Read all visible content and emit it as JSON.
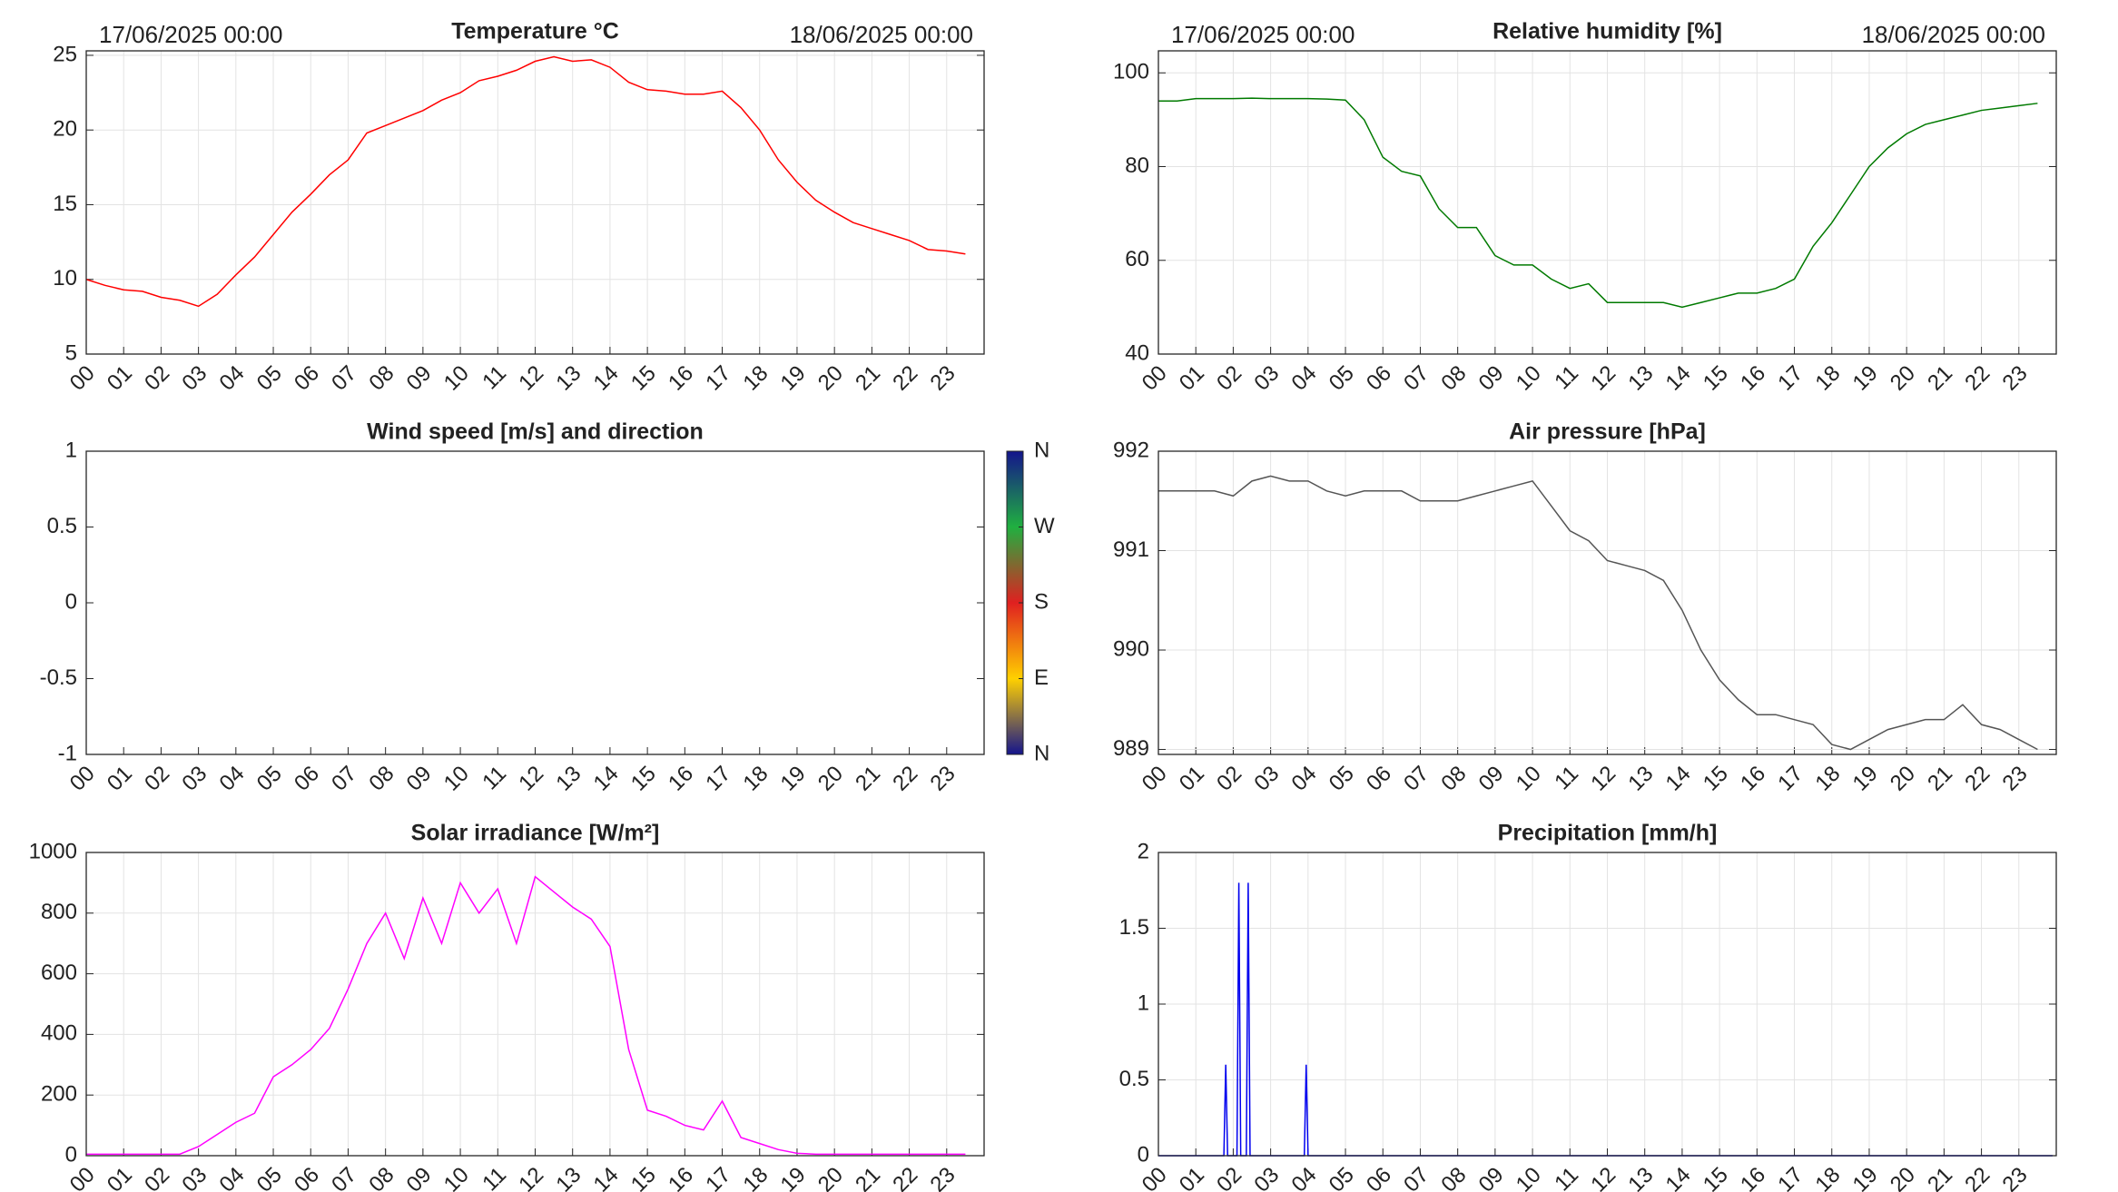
{
  "chart_data": [
    {
      "type": "line",
      "title": "Temperature °C",
      "annotations": [
        "17/06/2025 00:00",
        "18/06/2025 00:00"
      ],
      "color": "#ff0000",
      "grid": true,
      "x": [
        0,
        0.5,
        1,
        1.5,
        2,
        2.5,
        3,
        3.5,
        4,
        4.5,
        5,
        5.5,
        6,
        6.5,
        7,
        7.5,
        8,
        8.5,
        9,
        9.5,
        10,
        10.5,
        11,
        11.5,
        12,
        12.5,
        13,
        13.5,
        14,
        14.5,
        15,
        15.5,
        16,
        16.5,
        17,
        17.5,
        18,
        18.5,
        19,
        19.5,
        20,
        20.5,
        21,
        21.5,
        22,
        22.5,
        23,
        23.5
      ],
      "values": [
        10,
        9.6,
        9.3,
        9.2,
        8.8,
        8.6,
        8.2,
        9,
        10.3,
        11.5,
        13,
        14.5,
        15.7,
        17,
        18,
        19.8,
        20.3,
        20.8,
        21.3,
        22,
        22.5,
        23.3,
        23.6,
        24,
        24.6,
        24.9,
        24.6,
        24.7,
        24.2,
        23.2,
        22.7,
        22.6,
        22.4,
        22.4,
        22.6,
        21.5,
        20,
        18,
        16.5,
        15.3,
        14.5,
        13.8,
        13.4,
        13,
        12.6,
        12,
        11.9,
        11.7
      ],
      "xlim": [
        0,
        24
      ],
      "ylim": [
        5,
        25.3
      ],
      "yticks": [
        5,
        10,
        15,
        20,
        25
      ],
      "xticks": [
        {
          "value": 0,
          "label": "00"
        },
        {
          "value": 1,
          "label": "01"
        },
        {
          "value": 2,
          "label": "02"
        },
        {
          "value": 3,
          "label": "03"
        },
        {
          "value": 4,
          "label": "04"
        },
        {
          "value": 5,
          "label": "05"
        },
        {
          "value": 6,
          "label": "06"
        },
        {
          "value": 7,
          "label": "07"
        },
        {
          "value": 8,
          "label": "08"
        },
        {
          "value": 9,
          "label": "09"
        },
        {
          "value": 10,
          "label": "10"
        },
        {
          "value": 11,
          "label": "11"
        },
        {
          "value": 12,
          "label": "12"
        },
        {
          "value": 13,
          "label": "13"
        },
        {
          "value": 14,
          "label": "14"
        },
        {
          "value": 15,
          "label": "15"
        },
        {
          "value": 16,
          "label": "16"
        },
        {
          "value": 17,
          "label": "17"
        },
        {
          "value": 18,
          "label": "18"
        },
        {
          "value": 19,
          "label": "19"
        },
        {
          "value": 20,
          "label": "20"
        },
        {
          "value": 21,
          "label": "21"
        },
        {
          "value": 22,
          "label": "22"
        },
        {
          "value": 23,
          "label": "23"
        }
      ]
    },
    {
      "type": "line",
      "title": "Relative humidity [%]",
      "annotations": [
        "17/06/2025 00:00",
        "18/06/2025 00:00"
      ],
      "color": "#007a00",
      "grid": true,
      "x": [
        0,
        0.5,
        1,
        1.5,
        2,
        2.5,
        3,
        3.5,
        4,
        4.5,
        5,
        5.5,
        6,
        6.5,
        7,
        7.5,
        8,
        8.5,
        9,
        9.5,
        10,
        10.5,
        11,
        11.5,
        12,
        12.5,
        13,
        13.5,
        14,
        14.5,
        15,
        15.5,
        16,
        16.5,
        17,
        17.5,
        18,
        18.5,
        19,
        19.5,
        20,
        20.5,
        21,
        21.5,
        22,
        22.5,
        23,
        23.5
      ],
      "values": [
        94,
        94,
        94.5,
        94.5,
        94.5,
        94.6,
        94.5,
        94.5,
        94.5,
        94.4,
        94.2,
        90,
        82,
        79,
        78,
        71,
        67,
        67,
        61,
        59,
        59,
        56,
        54,
        55,
        51,
        51,
        51,
        51,
        50,
        51,
        52,
        53,
        53,
        54,
        56,
        63,
        68,
        74,
        80,
        84,
        87,
        89,
        90,
        91,
        92,
        92.5,
        93,
        93.5
      ],
      "xlim": [
        0,
        24
      ],
      "ylim": [
        40,
        104.7
      ],
      "yticks": [
        40,
        60,
        80,
        100
      ],
      "xticks": [
        {
          "value": 0,
          "label": "00"
        },
        {
          "value": 1,
          "label": "01"
        },
        {
          "value": 2,
          "label": "02"
        },
        {
          "value": 3,
          "label": "03"
        },
        {
          "value": 4,
          "label": "04"
        },
        {
          "value": 5,
          "label": "05"
        },
        {
          "value": 6,
          "label": "06"
        },
        {
          "value": 7,
          "label": "07"
        },
        {
          "value": 8,
          "label": "08"
        },
        {
          "value": 9,
          "label": "09"
        },
        {
          "value": 10,
          "label": "10"
        },
        {
          "value": 11,
          "label": "11"
        },
        {
          "value": 12,
          "label": "12"
        },
        {
          "value": 13,
          "label": "13"
        },
        {
          "value": 14,
          "label": "14"
        },
        {
          "value": 15,
          "label": "15"
        },
        {
          "value": 16,
          "label": "16"
        },
        {
          "value": 17,
          "label": "17"
        },
        {
          "value": 18,
          "label": "18"
        },
        {
          "value": 19,
          "label": "19"
        },
        {
          "value": 20,
          "label": "20"
        },
        {
          "value": 21,
          "label": "21"
        },
        {
          "value": 22,
          "label": "22"
        },
        {
          "value": 23,
          "label": "23"
        }
      ]
    },
    {
      "type": "line",
      "title": "Wind speed [m/s] and direction",
      "grid": false,
      "xlim": [
        0,
        24
      ],
      "ylim": [
        -1,
        1
      ],
      "yticks": [
        -1,
        -0.5,
        0,
        0.5,
        1
      ],
      "colorbar": {
        "range": [
          0,
          360
        ],
        "ticks": [
          {
            "value": 0,
            "label": "N"
          },
          {
            "value": 90,
            "label": "E"
          },
          {
            "value": 180,
            "label": "S"
          },
          {
            "value": 270,
            "label": "W"
          },
          {
            "value": 360,
            "label": "N"
          }
        ],
        "colors": [
          "#14148c",
          "#ffd000",
          "#e02020",
          "#20b040",
          "#14148c"
        ]
      },
      "xticks": [
        {
          "value": 0,
          "label": "00"
        },
        {
          "value": 1,
          "label": "01"
        },
        {
          "value": 2,
          "label": "02"
        },
        {
          "value": 3,
          "label": "03"
        },
        {
          "value": 4,
          "label": "04"
        },
        {
          "value": 5,
          "label": "05"
        },
        {
          "value": 6,
          "label": "06"
        },
        {
          "value": 7,
          "label": "07"
        },
        {
          "value": 8,
          "label": "08"
        },
        {
          "value": 9,
          "label": "09"
        },
        {
          "value": 10,
          "label": "10"
        },
        {
          "value": 11,
          "label": "11"
        },
        {
          "value": 12,
          "label": "12"
        },
        {
          "value": 13,
          "label": "13"
        },
        {
          "value": 14,
          "label": "14"
        },
        {
          "value": 15,
          "label": "15"
        },
        {
          "value": 16,
          "label": "16"
        },
        {
          "value": 17,
          "label": "17"
        },
        {
          "value": 18,
          "label": "18"
        },
        {
          "value": 19,
          "label": "19"
        },
        {
          "value": 20,
          "label": "20"
        },
        {
          "value": 21,
          "label": "21"
        },
        {
          "value": 22,
          "label": "22"
        },
        {
          "value": 23,
          "label": "23"
        }
      ]
    },
    {
      "type": "line",
      "title": "Air pressure [hPa]",
      "color": "#555555",
      "grid": true,
      "x": [
        0,
        0.5,
        1,
        1.5,
        2,
        2.5,
        3,
        3.5,
        4,
        4.5,
        5,
        5.5,
        6,
        6.5,
        7,
        7.5,
        8,
        8.5,
        9,
        9.5,
        10,
        10.5,
        11,
        11.5,
        12,
        12.5,
        13,
        13.5,
        14,
        14.5,
        15,
        15.5,
        16,
        16.5,
        17,
        17.5,
        18,
        18.5,
        19,
        19.5,
        20,
        20.5,
        21,
        21.5,
        22,
        22.5,
        23,
        23.5
      ],
      "values": [
        991.6,
        991.6,
        991.6,
        991.6,
        991.55,
        991.7,
        991.75,
        991.7,
        991.7,
        991.6,
        991.55,
        991.6,
        991.6,
        991.6,
        991.5,
        991.5,
        991.5,
        991.55,
        991.6,
        991.65,
        991.7,
        991.45,
        991.2,
        991.1,
        990.9,
        990.85,
        990.8,
        990.7,
        990.4,
        990.0,
        989.7,
        989.5,
        989.35,
        989.35,
        989.3,
        989.25,
        989.05,
        989.0,
        989.1,
        989.2,
        989.25,
        989.3,
        989.3,
        989.45,
        989.25,
        989.2,
        989.1,
        989.0
      ],
      "xlim": [
        0,
        24
      ],
      "ylim": [
        988.95,
        992
      ],
      "yticks": [
        989,
        990,
        991,
        992
      ],
      "xticks": [
        {
          "value": 0,
          "label": "00"
        },
        {
          "value": 1,
          "label": "01"
        },
        {
          "value": 2,
          "label": "02"
        },
        {
          "value": 3,
          "label": "03"
        },
        {
          "value": 4,
          "label": "04"
        },
        {
          "value": 5,
          "label": "05"
        },
        {
          "value": 6,
          "label": "06"
        },
        {
          "value": 7,
          "label": "07"
        },
        {
          "value": 8,
          "label": "08"
        },
        {
          "value": 9,
          "label": "09"
        },
        {
          "value": 10,
          "label": "10"
        },
        {
          "value": 11,
          "label": "11"
        },
        {
          "value": 12,
          "label": "12"
        },
        {
          "value": 13,
          "label": "13"
        },
        {
          "value": 14,
          "label": "14"
        },
        {
          "value": 15,
          "label": "15"
        },
        {
          "value": 16,
          "label": "16"
        },
        {
          "value": 17,
          "label": "17"
        },
        {
          "value": 18,
          "label": "18"
        },
        {
          "value": 19,
          "label": "19"
        },
        {
          "value": 20,
          "label": "20"
        },
        {
          "value": 21,
          "label": "21"
        },
        {
          "value": 22,
          "label": "22"
        },
        {
          "value": 23,
          "label": "23"
        }
      ]
    },
    {
      "type": "line",
      "title": "Solar irradiance [W/m²]",
      "color": "#ff00ff",
      "grid": true,
      "x": [
        0,
        0.5,
        1,
        1.5,
        2,
        2.5,
        3,
        3.5,
        4,
        4.5,
        5,
        5.5,
        6,
        6.5,
        7,
        7.5,
        8,
        8.5,
        9,
        9.5,
        10,
        10.5,
        11,
        11.5,
        12,
        12.5,
        13,
        13.5,
        14,
        14.5,
        15,
        15.5,
        16,
        16.5,
        17,
        17.5,
        18,
        18.5,
        19,
        19.5,
        20,
        20.5,
        21,
        21.5,
        22,
        22.5,
        23,
        23.5
      ],
      "values": [
        5,
        5,
        5,
        5,
        5,
        5,
        30,
        70,
        110,
        140,
        260,
        300,
        350,
        420,
        550,
        700,
        800,
        650,
        850,
        700,
        900,
        800,
        880,
        700,
        920,
        870,
        820,
        780,
        690,
        350,
        150,
        130,
        100,
        85,
        180,
        60,
        40,
        20,
        8,
        5,
        5,
        5,
        5,
        5,
        5,
        5,
        5,
        5
      ],
      "xlim": [
        0,
        24
      ],
      "ylim": [
        0,
        1000
      ],
      "yticks": [
        0,
        200,
        400,
        600,
        800,
        1000
      ],
      "xticks": [
        {
          "value": 0,
          "label": "00"
        },
        {
          "value": 1,
          "label": "01"
        },
        {
          "value": 2,
          "label": "02"
        },
        {
          "value": 3,
          "label": "03"
        },
        {
          "value": 4,
          "label": "04"
        },
        {
          "value": 5,
          "label": "05"
        },
        {
          "value": 6,
          "label": "06"
        },
        {
          "value": 7,
          "label": "07"
        },
        {
          "value": 8,
          "label": "08"
        },
        {
          "value": 9,
          "label": "09"
        },
        {
          "value": 10,
          "label": "10"
        },
        {
          "value": 11,
          "label": "11"
        },
        {
          "value": 12,
          "label": "12"
        },
        {
          "value": 13,
          "label": "13"
        },
        {
          "value": 14,
          "label": "14"
        },
        {
          "value": 15,
          "label": "15"
        },
        {
          "value": 16,
          "label": "16"
        },
        {
          "value": 17,
          "label": "17"
        },
        {
          "value": 18,
          "label": "18"
        },
        {
          "value": 19,
          "label": "19"
        },
        {
          "value": 20,
          "label": "20"
        },
        {
          "value": 21,
          "label": "21"
        },
        {
          "value": 22,
          "label": "22"
        },
        {
          "value": 23,
          "label": "23"
        }
      ]
    },
    {
      "type": "line",
      "title": "Precipitation [mm/h]",
      "color": "#0000ee",
      "grid": true,
      "x": [
        0,
        1.75,
        1.8,
        1.85,
        2.1,
        2.15,
        2.2,
        2.35,
        2.4,
        2.45,
        3.9,
        3.95,
        4.0,
        23.9
      ],
      "values": [
        0,
        0,
        0.6,
        0,
        0,
        1.8,
        0,
        0,
        1.8,
        0,
        0,
        0.6,
        0,
        0
      ],
      "xlim": [
        0,
        24
      ],
      "ylim": [
        0,
        2
      ],
      "yticks": [
        0,
        0.5,
        1,
        1.5,
        2
      ],
      "xticks": [
        {
          "value": 0,
          "label": "00"
        },
        {
          "value": 1,
          "label": "01"
        },
        {
          "value": 2,
          "label": "02"
        },
        {
          "value": 3,
          "label": "03"
        },
        {
          "value": 4,
          "label": "04"
        },
        {
          "value": 5,
          "label": "05"
        },
        {
          "value": 6,
          "label": "06"
        },
        {
          "value": 7,
          "label": "07"
        },
        {
          "value": 8,
          "label": "08"
        },
        {
          "value": 9,
          "label": "09"
        },
        {
          "value": 10,
          "label": "10"
        },
        {
          "value": 11,
          "label": "11"
        },
        {
          "value": 12,
          "label": "12"
        },
        {
          "value": 13,
          "label": "13"
        },
        {
          "value": 14,
          "label": "14"
        },
        {
          "value": 15,
          "label": "15"
        },
        {
          "value": 16,
          "label": "16"
        },
        {
          "value": 17,
          "label": "17"
        },
        {
          "value": 18,
          "label": "18"
        },
        {
          "value": 19,
          "label": "19"
        },
        {
          "value": 20,
          "label": "20"
        },
        {
          "value": 21,
          "label": "21"
        },
        {
          "value": 22,
          "label": "22"
        },
        {
          "value": 23,
          "label": "23"
        }
      ]
    }
  ]
}
